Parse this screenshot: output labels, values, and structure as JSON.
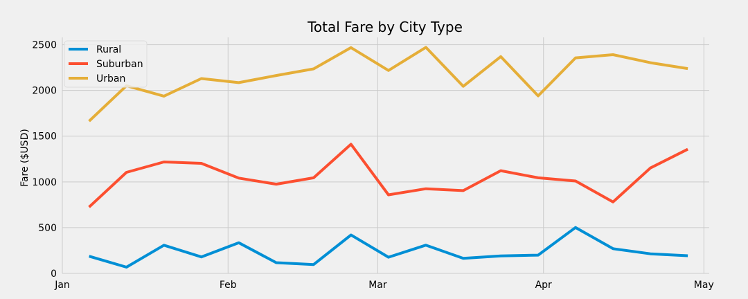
{
  "chart_data": {
    "type": "line",
    "title": "Total Fare by City Type",
    "xlabel": "",
    "ylabel": "Fare ($USD)",
    "ylim": [
      0,
      2580
    ],
    "xlim": [
      "2019-01-01",
      "2019-05-02"
    ],
    "grid": true,
    "legend_position": "top-left",
    "x_ticks": [
      {
        "label": "Jan",
        "date": "2019-01-01"
      },
      {
        "label": "Feb",
        "date": "2019-02-01"
      },
      {
        "label": "Mar",
        "date": "2019-03-01"
      },
      {
        "label": "Apr",
        "date": "2019-04-01"
      },
      {
        "label": "May",
        "date": "2019-05-01"
      }
    ],
    "y_ticks": [
      0,
      500,
      1000,
      1500,
      2000,
      2500
    ],
    "x": [
      "2019-01-06",
      "2019-01-13",
      "2019-01-20",
      "2019-01-27",
      "2019-02-03",
      "2019-02-10",
      "2019-02-17",
      "2019-02-24",
      "2019-03-03",
      "2019-03-10",
      "2019-03-17",
      "2019-03-24",
      "2019-03-31",
      "2019-04-07",
      "2019-04-14",
      "2019-04-21",
      "2019-04-28"
    ],
    "series": [
      {
        "name": "Rural",
        "color": "#008fd5",
        "values": [
          188,
          68,
          308,
          180,
          335,
          117,
          97,
          420,
          177,
          309,
          164,
          191,
          200,
          502,
          270,
          214,
          193
        ]
      },
      {
        "name": "Suburban",
        "color": "#fc4f30",
        "values": [
          725,
          1105,
          1218,
          1203,
          1042,
          975,
          1045,
          1412,
          859,
          925,
          905,
          1123,
          1045,
          1010,
          781,
          1152,
          1357
        ]
      },
      {
        "name": "Urban",
        "color": "#e5ae38",
        "values": [
          1664,
          2051,
          1938,
          2130,
          2085,
          2163,
          2236,
          2468,
          2218,
          2471,
          2045,
          2370,
          1941,
          2356,
          2391,
          2303,
          2239
        ]
      }
    ]
  }
}
